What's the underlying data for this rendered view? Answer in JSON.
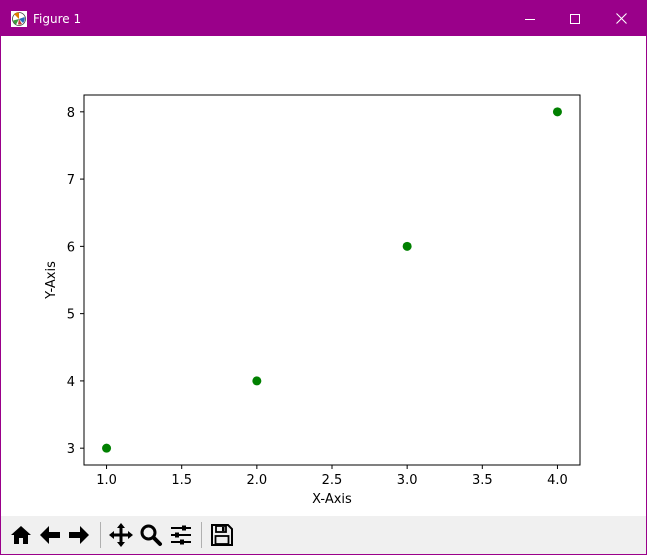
{
  "window": {
    "title": "Figure 1",
    "titlebar_color": "#9a008a",
    "controls": [
      "minimize-icon",
      "maximize-icon",
      "close-icon"
    ]
  },
  "toolbar": {
    "buttons": [
      "home-icon",
      "back-arrow-icon",
      "forward-arrow-icon",
      "pan-icon",
      "zoom-icon",
      "configure-subplots-icon",
      "save-icon"
    ]
  },
  "chart_data": {
    "type": "scatter",
    "title": "",
    "xlabel": "X-Axis",
    "ylabel": "Y-Axis",
    "x": [
      1.0,
      2.0,
      3.0,
      4.0
    ],
    "y": [
      3,
      4,
      6,
      8
    ],
    "xlim": [
      0.85,
      4.15
    ],
    "ylim": [
      2.75,
      8.25
    ],
    "xticks": [
      1.0,
      1.5,
      2.0,
      2.5,
      3.0,
      3.5,
      4.0
    ],
    "xtick_labels": [
      "1.0",
      "1.5",
      "2.0",
      "2.5",
      "3.0",
      "3.5",
      "4.0"
    ],
    "yticks": [
      3,
      4,
      5,
      6,
      7,
      8
    ],
    "ytick_labels": [
      "3",
      "4",
      "5",
      "6",
      "7",
      "8"
    ],
    "marker_color": "#008000",
    "grid": false,
    "legend": "none"
  }
}
